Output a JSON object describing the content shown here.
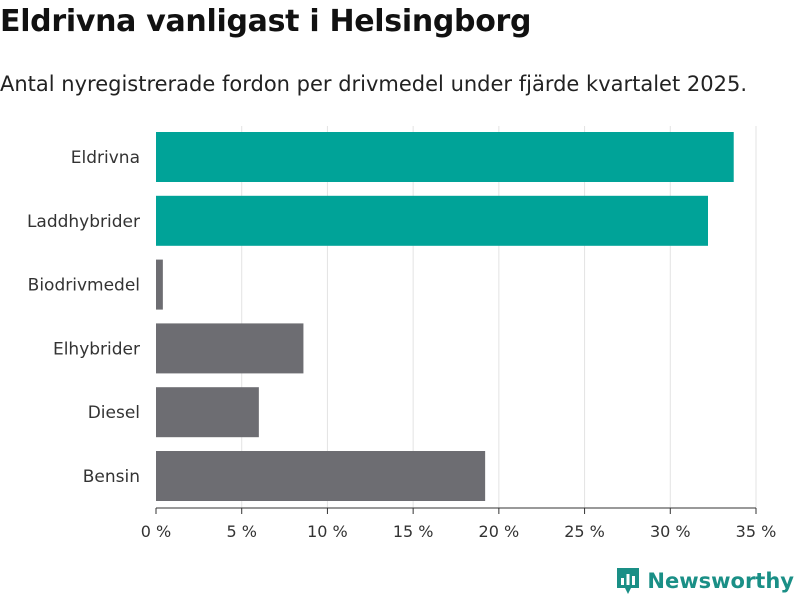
{
  "header": {
    "title": "Eldrivna vanligast i Helsingborg",
    "subtitle": "Antal nyregistrerade fordon per drivmedel under fjärde kvartalet 2025."
  },
  "brand": {
    "name": "Newsworthy",
    "color": "#1a8f86"
  },
  "chart_data": {
    "type": "bar",
    "orientation": "horizontal",
    "categories": [
      "Eldrivna",
      "Laddhybrider",
      "Biodrivmedel",
      "Elhybrider",
      "Diesel",
      "Bensin"
    ],
    "values": [
      33.7,
      32.2,
      0.4,
      8.6,
      6.0,
      19.2
    ],
    "colors": [
      "#00a398",
      "#00a398",
      "#6d6d72",
      "#6d6d72",
      "#6d6d72",
      "#6d6d72"
    ],
    "xlim": [
      0,
      35
    ],
    "xticks": [
      0,
      5,
      10,
      15,
      20,
      25,
      30,
      35
    ],
    "xtick_labels": [
      "0 %",
      "5 %",
      "10 %",
      "15 %",
      "20 %",
      "25 %",
      "30 %",
      "35 %"
    ],
    "grid": true
  }
}
